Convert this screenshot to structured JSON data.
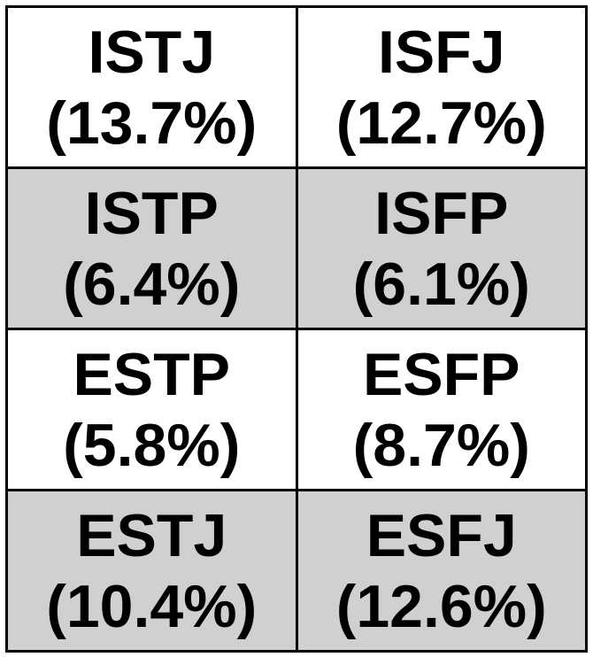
{
  "colors": {
    "border": "#000000",
    "text": "#000000",
    "white_row": "#ffffff",
    "gray_row": "#d0d0d0"
  },
  "chart_data": {
    "type": "table",
    "rows": [
      {
        "shade": "white",
        "cells": [
          {
            "type": "ISTJ",
            "percent": 13.7,
            "label": "(13.7%)"
          },
          {
            "type": "ISFJ",
            "percent": 12.7,
            "label": "(12.7%)"
          }
        ]
      },
      {
        "shade": "gray",
        "cells": [
          {
            "type": "ISTP",
            "percent": 6.4,
            "label": "(6.4%)"
          },
          {
            "type": "ISFP",
            "percent": 6.1,
            "label": "(6.1%)"
          }
        ]
      },
      {
        "shade": "white",
        "cells": [
          {
            "type": "ESTP",
            "percent": 5.8,
            "label": "(5.8%)"
          },
          {
            "type": "ESFP",
            "percent": 8.7,
            "label": "(8.7%)"
          }
        ]
      },
      {
        "shade": "gray",
        "cells": [
          {
            "type": "ESTJ",
            "percent": 10.4,
            "label": "(10.4%)"
          },
          {
            "type": "ESFJ",
            "percent": 12.6,
            "label": "(12.6%)"
          }
        ]
      }
    ]
  }
}
